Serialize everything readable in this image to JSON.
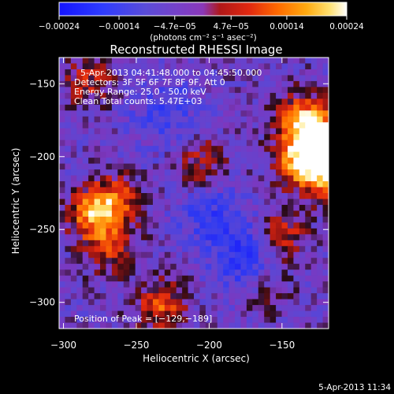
{
  "chart_data": {
    "type": "heatmap",
    "title": "Reconstructed RHESSI Image",
    "xlabel": "Heliocentric X (arcsec)",
    "ylabel": "Heliocentric Y (arcsec)",
    "xlim": [
      -303,
      -118
    ],
    "ylim": [
      -318,
      -132
    ],
    "xticks": [
      -300,
      -250,
      -200,
      -150
    ],
    "yticks": [
      -300,
      -250,
      -200,
      -150
    ],
    "xtick_labels": [
      "−300",
      "−250",
      "−200",
      "−150"
    ],
    "ytick_labels": [
      "−300",
      "−250",
      "−200",
      "−150"
    ],
    "colorbar": {
      "min": -0.00024,
      "max": 0.00024,
      "ticks": [
        -0.00024,
        -0.00014,
        -4.7e-05,
        4.7e-05,
        0.00014,
        0.00024
      ],
      "tick_labels": [
        "−0.00024",
        "−0.00014",
        "−4.7e−05",
        "4.7e−05",
        "0.00014",
        "0.00024"
      ],
      "unit_label": "(photons cm⁻² s⁻¹ asec⁻²)",
      "colormap": "red-temperature with blue negatives"
    },
    "annotations": [
      "5-Apr-2013 04:41:48.000 to 04:45:50.000",
      "Detectors: 3F 5F 6F 7F 8F 9F, Att 0",
      "Energy Range: 25.0 - 50.0 keV",
      "Clean     Total counts: 5.47E+03"
    ],
    "peak": {
      "x": -129,
      "y": -189,
      "label": "Position of Peak = [−129,−189]"
    },
    "bright_sources": [
      {
        "x": -125,
        "y": -192,
        "strength": 1.0
      },
      {
        "x": -135,
        "y": -175,
        "strength": 0.7
      },
      {
        "x": -120,
        "y": -210,
        "strength": 0.75
      },
      {
        "x": -140,
        "y": -205,
        "strength": 0.5
      },
      {
        "x": -280,
        "y": -240,
        "strength": 0.6
      },
      {
        "x": -265,
        "y": -230,
        "strength": 0.5
      },
      {
        "x": -268,
        "y": -262,
        "strength": 0.4
      },
      {
        "x": -233,
        "y": -302,
        "strength": 0.5
      },
      {
        "x": -150,
        "y": -255,
        "strength": 0.45
      },
      {
        "x": -283,
        "y": -148,
        "strength": 0.35
      },
      {
        "x": -205,
        "y": -205,
        "strength": 0.35
      },
      {
        "x": -160,
        "y": -290,
        "strength": 0.25
      }
    ],
    "negative_regions": [
      {
        "x": -175,
        "y": -270,
        "strength": 0.5
      },
      {
        "x": -200,
        "y": -240,
        "strength": 0.35
      },
      {
        "x": -230,
        "y": -170,
        "strength": 0.3
      }
    ]
  },
  "footer": {
    "timestamp": "5-Apr-2013 11:34"
  }
}
